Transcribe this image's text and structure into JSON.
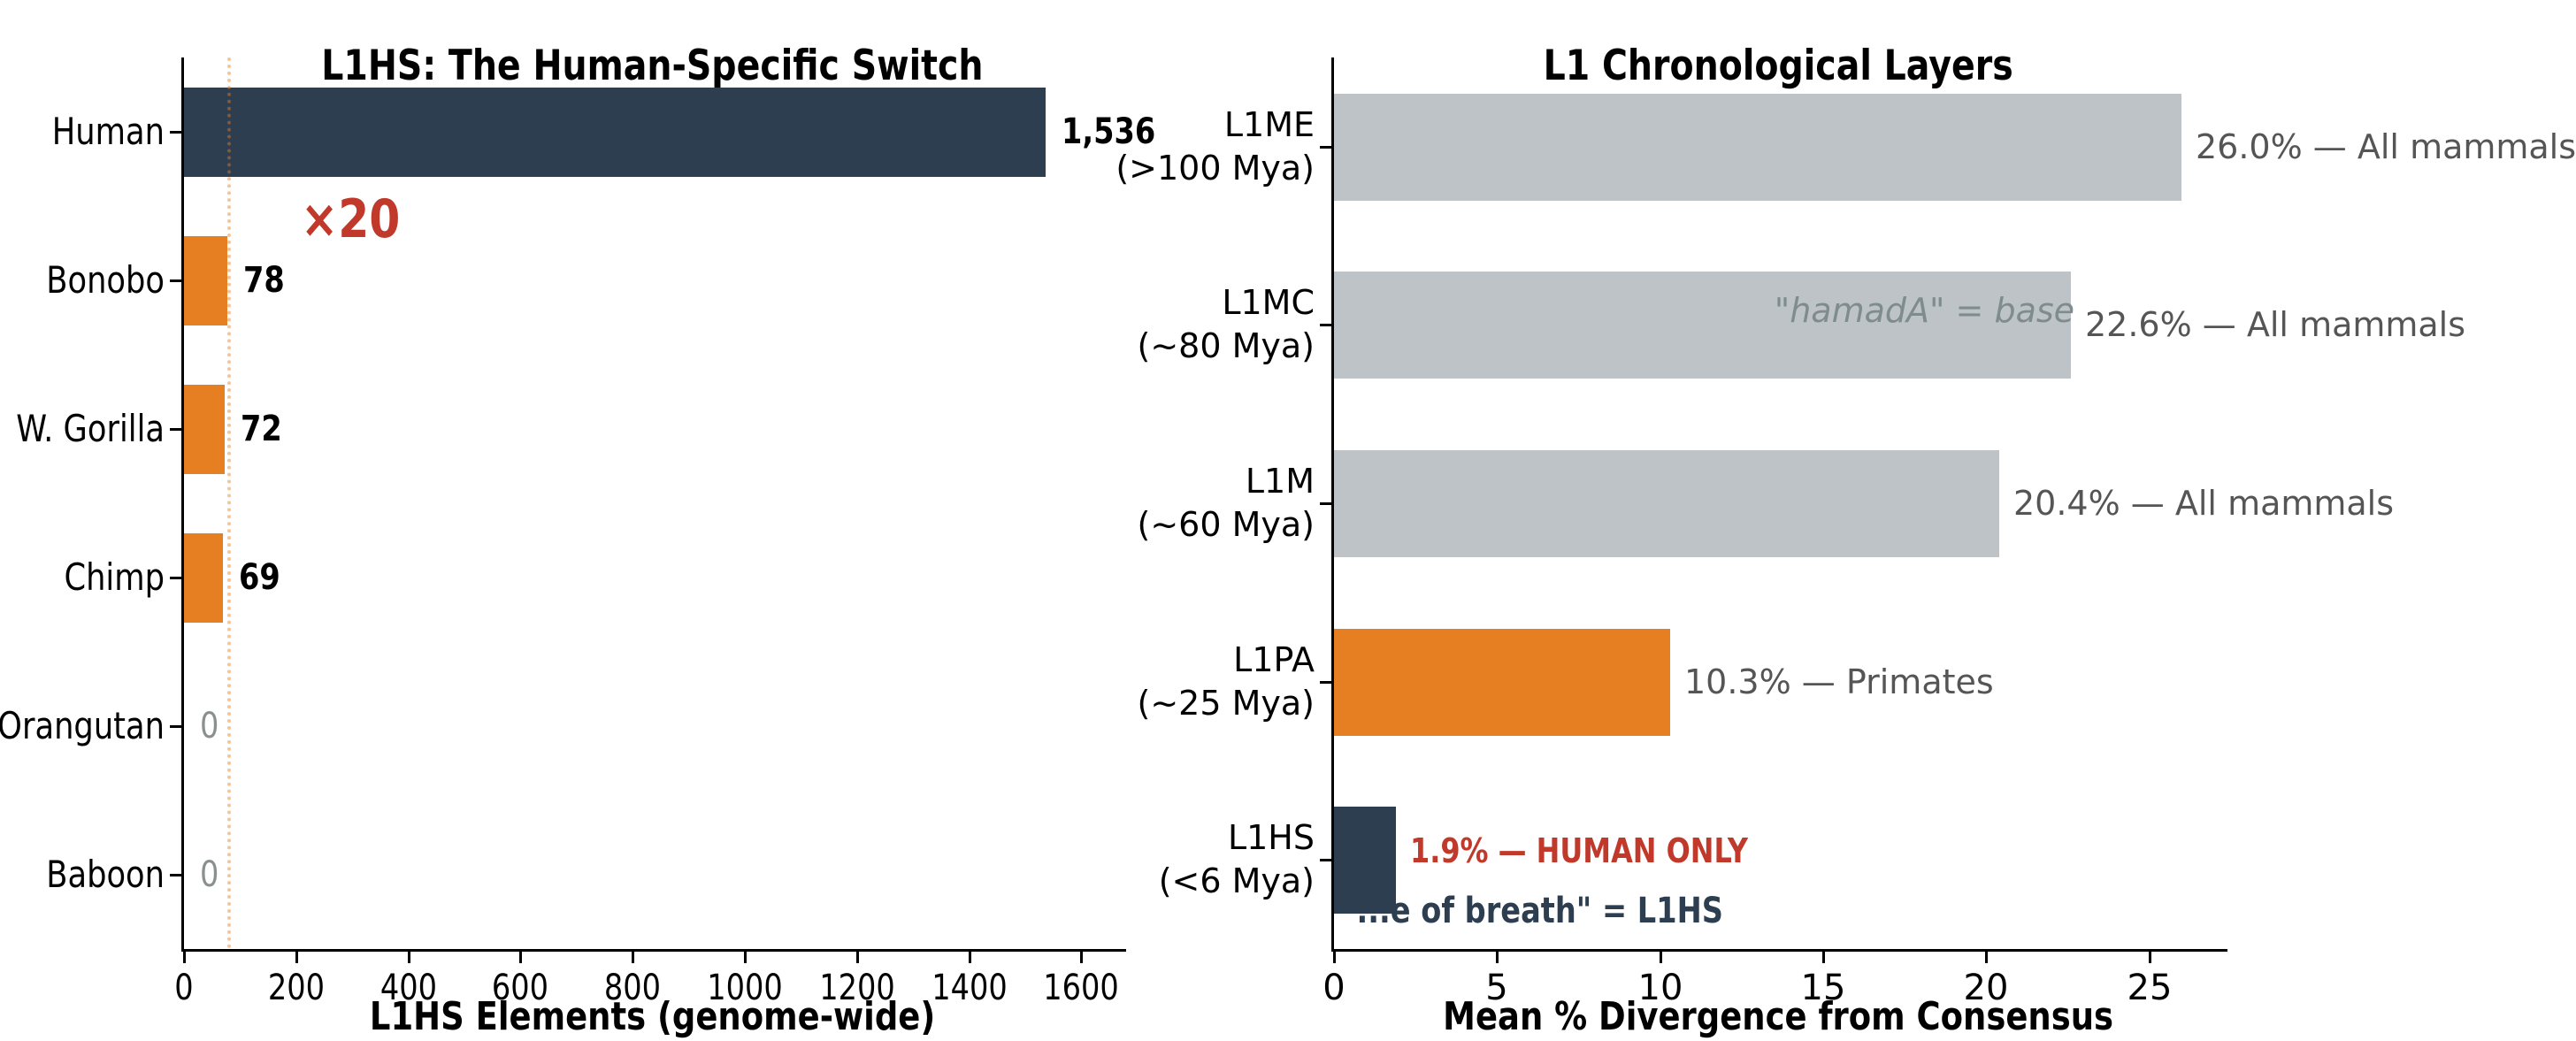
{
  "figure": {
    "background": "#ffffff",
    "palette": {
      "navy": "#2c3e50",
      "orange": "#e67e22",
      "gray_bar": "#bdc3c7",
      "red": "#c0392b",
      "annotation_gray": "#555555",
      "muted_gray": "#7f8c8d",
      "zero_label_gray": "#8a8f90",
      "ref_line": "rgba(230,126,34,0.45)"
    }
  },
  "chart_data": [
    {
      "type": "bar",
      "orientation": "horizontal",
      "title": "L1HS: The Human-Specific Switch",
      "xlabel": "L1HS Elements (genome-wide)",
      "categories": [
        "Human",
        "Bonobo",
        "W. Gorilla",
        "Chimp",
        "Orangutan",
        "Baboon"
      ],
      "values": [
        1536,
        78,
        72,
        69,
        0,
        0
      ],
      "value_labels": [
        "1,536",
        "78",
        "72",
        "69",
        "0",
        "0"
      ],
      "value_label_colors": [
        "#000000",
        "#000000",
        "#000000",
        "#000000",
        "#8a8f90",
        "#8a8f90"
      ],
      "value_label_bold": [
        true,
        true,
        true,
        true,
        false,
        false
      ],
      "bar_colors": [
        "#2c3e50",
        "#e67e22",
        "#e67e22",
        "#e67e22",
        "#e67e22",
        "#e67e22"
      ],
      "xticks": [
        0,
        200,
        400,
        600,
        800,
        1000,
        1200,
        1400,
        1600
      ],
      "xlim": [
        0,
        1680
      ],
      "grid": false,
      "legend": false,
      "reference_line_x": 78,
      "annotations": [
        {
          "text": "×20",
          "color": "#c0392b",
          "style": "bold"
        }
      ]
    },
    {
      "type": "bar",
      "orientation": "horizontal",
      "title": "L1 Chronological Layers",
      "xlabel": "Mean % Divergence from Consensus",
      "categories": [
        "L1ME\n(>100 Mya)",
        "L1MC\n(~80 Mya)",
        "L1M\n(~60 Mya)",
        "L1PA\n(~25 Mya)",
        "L1HS\n(<6 Mya)"
      ],
      "values": [
        26.0,
        22.6,
        20.4,
        10.3,
        1.9
      ],
      "value_labels": [
        "26.0% — All mammals",
        "22.6% — All mammals",
        "20.4% — All mammals",
        "10.3% — Primates",
        "1.9% — HUMAN ONLY"
      ],
      "value_label_colors": [
        "#555555",
        "#555555",
        "#555555",
        "#555555",
        "#c0392b"
      ],
      "value_label_bold": [
        false,
        false,
        false,
        false,
        true
      ],
      "bar_colors": [
        "#bdc3c7",
        "#bdc3c7",
        "#bdc3c7",
        "#e67e22",
        "#2c3e50"
      ],
      "xticks": [
        0,
        5,
        10,
        15,
        20,
        25
      ],
      "xlim": [
        0,
        27.4
      ],
      "grid": false,
      "legend": false,
      "annotations": [
        {
          "text": "\"hamadA\" = base",
          "color": "#7f8c8d",
          "style": "italic",
          "anchor_x_value": 22.6
        },
        {
          "text": "\"...e of breath\" = L1HS",
          "color": "#2c3e50",
          "style": "bold"
        }
      ]
    }
  ]
}
